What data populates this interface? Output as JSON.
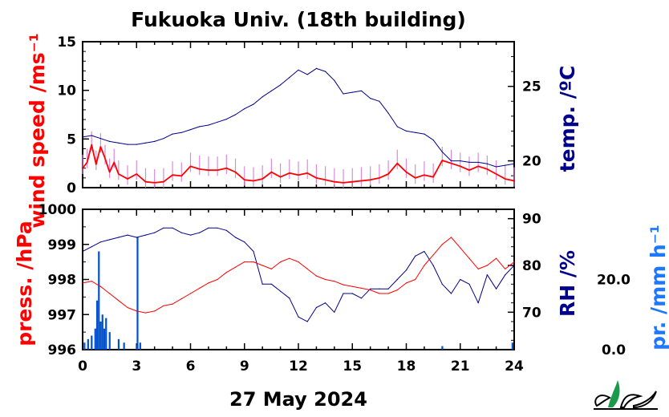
{
  "title": "Fukuoka Univ. (18th building)",
  "date_label": "27 May 2024",
  "x_ticks": [
    "0",
    "3",
    "6",
    "9",
    "12",
    "15",
    "18",
    "21",
    "24"
  ],
  "colors": {
    "wind": "#ff0000",
    "wind_raw": "#dd88dd",
    "temperature": "#00008b",
    "pressure": "#ff0000",
    "humidity": "#00008b",
    "precipitation": "#1e78ff",
    "precip_bar": "#0050d0",
    "logo": "#1a9a4a"
  },
  "logo": {
    "icon": "leaf-logo-icon"
  },
  "chart_data": [
    {
      "type": "line",
      "xlim": [
        0,
        24
      ],
      "left_axis": {
        "label": "wind speed /ms⁻¹",
        "ylim": [
          0,
          15
        ],
        "ticks": [
          "0",
          "5",
          "10",
          "15"
        ]
      },
      "right_axis": {
        "label": "temp. /ºC",
        "ylim": [
          18.2,
          28
        ],
        "ticks": [
          "20",
          "25"
        ]
      },
      "series": [
        {
          "axis": "right",
          "color": "temperature",
          "x": [
            0,
            0.5,
            1,
            1.5,
            2,
            2.5,
            3,
            3.5,
            4,
            4.5,
            5,
            5.5,
            6,
            6.5,
            7,
            7.5,
            8,
            8.5,
            9,
            9.5,
            10,
            10.5,
            11,
            11.5,
            12,
            12.5,
            13,
            13.5,
            14,
            14.5,
            15,
            15.5,
            16,
            16.5,
            17,
            17.5,
            18,
            18.5,
            19,
            19.5,
            20,
            20.5,
            21,
            21.5,
            22,
            22.5,
            23,
            23.5,
            24
          ],
          "y": [
            21.6,
            21.7,
            21.5,
            21.3,
            21.2,
            21.1,
            21.1,
            21.2,
            21.3,
            21.5,
            21.8,
            21.9,
            22.1,
            22.3,
            22.4,
            22.6,
            22.8,
            23.1,
            23.5,
            23.8,
            24.3,
            24.7,
            25.1,
            25.6,
            26.1,
            25.8,
            26.2,
            26.0,
            25.4,
            24.5,
            24.6,
            24.7,
            24.2,
            24.0,
            23.2,
            22.3,
            22.0,
            21.9,
            21.8,
            21.4,
            20.6,
            20.0,
            20.0,
            19.9,
            19.9,
            19.8,
            19.6,
            19.7,
            19.8
          ]
        },
        {
          "axis": "left",
          "color": "wind",
          "x": [
            0,
            0.25,
            0.5,
            0.75,
            1,
            1.25,
            1.5,
            1.75,
            2,
            2.5,
            3,
            3.5,
            4,
            4.5,
            5,
            5.5,
            6,
            6.5,
            7,
            7.5,
            8,
            8.5,
            9,
            9.5,
            10,
            10.5,
            11,
            11.5,
            12,
            12.5,
            13,
            13.5,
            14,
            14.5,
            15,
            15.5,
            16,
            16.5,
            17,
            17.5,
            18,
            18.5,
            19,
            19.5,
            20,
            20.5,
            21,
            21.5,
            22,
            22.5,
            23,
            23.5,
            24
          ],
          "y": [
            2.0,
            2.6,
            4.4,
            2.4,
            4.2,
            3.0,
            1.6,
            2.6,
            1.4,
            0.9,
            1.4,
            0.6,
            0.5,
            0.6,
            1.3,
            1.2,
            2.2,
            1.9,
            1.8,
            1.8,
            2.0,
            1.6,
            0.8,
            0.7,
            0.9,
            1.6,
            1.1,
            1.5,
            1.3,
            1.5,
            1.0,
            0.8,
            0.6,
            0.5,
            0.6,
            0.7,
            0.8,
            1.0,
            1.4,
            2.5,
            1.6,
            1.0,
            1.3,
            1.1,
            2.8,
            2.5,
            2.2,
            1.8,
            2.2,
            1.9,
            1.4,
            0.9,
            0.7
          ]
        }
      ]
    },
    {
      "type": "line",
      "xlim": [
        0,
        24
      ],
      "left_axis": {
        "label": "press. /hPa",
        "ylim": [
          996,
          1000
        ],
        "ticks": [
          "996",
          "997",
          "998",
          "999",
          "1000"
        ]
      },
      "right_axis": {
        "label": "RH /%",
        "ylim": [
          62,
          92
        ],
        "ticks": [
          "70",
          "80",
          "90"
        ]
      },
      "extra_axis": {
        "label": "pr. /mm h⁻¹",
        "ylim": [
          0,
          40
        ],
        "ticks": [
          "0.0",
          "20.0"
        ]
      },
      "series": [
        {
          "axis": "left",
          "color": "pressure",
          "x": [
            0,
            0.5,
            1,
            1.5,
            2,
            2.5,
            3,
            3.5,
            4,
            4.5,
            5,
            5.5,
            6,
            6.5,
            7,
            7.5,
            8,
            8.5,
            9,
            9.5,
            10,
            10.5,
            11,
            11.5,
            12,
            12.5,
            13,
            13.5,
            14,
            14.5,
            15,
            15.5,
            16,
            16.5,
            17,
            17.5,
            18,
            18.5,
            19,
            19.5,
            20,
            20.5,
            21,
            21.5,
            22,
            22.5,
            23,
            23.5,
            24
          ],
          "y": [
            997.9,
            997.95,
            997.8,
            997.6,
            997.4,
            997.2,
            997.1,
            997.05,
            997.1,
            997.25,
            997.3,
            997.45,
            997.6,
            997.75,
            997.9,
            998.0,
            998.2,
            998.35,
            998.5,
            998.5,
            998.4,
            998.3,
            998.5,
            998.6,
            998.5,
            998.3,
            998.1,
            998.0,
            997.95,
            997.85,
            997.8,
            997.75,
            997.7,
            997.6,
            997.6,
            997.7,
            997.9,
            998.0,
            998.4,
            998.7,
            999.0,
            999.2,
            998.9,
            998.6,
            998.3,
            998.4,
            998.6,
            998.3,
            998.5
          ]
        },
        {
          "axis": "right",
          "color": "humidity",
          "x": [
            0,
            0.5,
            1,
            1.5,
            2,
            2.5,
            3,
            3.5,
            4,
            4.5,
            5,
            5.5,
            6,
            6.5,
            7,
            7.5,
            8,
            8.5,
            9,
            9.5,
            10,
            10.5,
            11,
            11.5,
            12,
            12.5,
            13,
            13.5,
            14,
            14.5,
            15,
            15.5,
            16,
            16.5,
            17,
            17.5,
            18,
            18.5,
            19,
            19.5,
            20,
            20.5,
            21,
            21.5,
            22,
            22.5,
            23,
            23.5,
            24
          ],
          "y": [
            83,
            84,
            85,
            85.5,
            86,
            86.5,
            86,
            86.5,
            87,
            88,
            88,
            87,
            86.5,
            87,
            88,
            88,
            87.5,
            86,
            85,
            83,
            76,
            76,
            74.5,
            73,
            69,
            68,
            71,
            72,
            70,
            74,
            74,
            73,
            75,
            75,
            75,
            77,
            79,
            82,
            83,
            80,
            76,
            74,
            77,
            76,
            72,
            78,
            75,
            78,
            80
          ]
        }
      ],
      "bars": {
        "axis": "extra",
        "color": "precip_bar",
        "x": [
          0.1,
          0.3,
          0.5,
          0.7,
          0.8,
          0.9,
          1.0,
          1.1,
          1.2,
          1.3,
          1.5,
          2.0,
          2.3,
          3.0,
          3.05,
          3.2,
          20.0,
          23.9
        ],
        "y": [
          2,
          3,
          4,
          6,
          14,
          28,
          8,
          10,
          6,
          9,
          5,
          3,
          2,
          1,
          32,
          2,
          1,
          2
        ]
      }
    }
  ]
}
